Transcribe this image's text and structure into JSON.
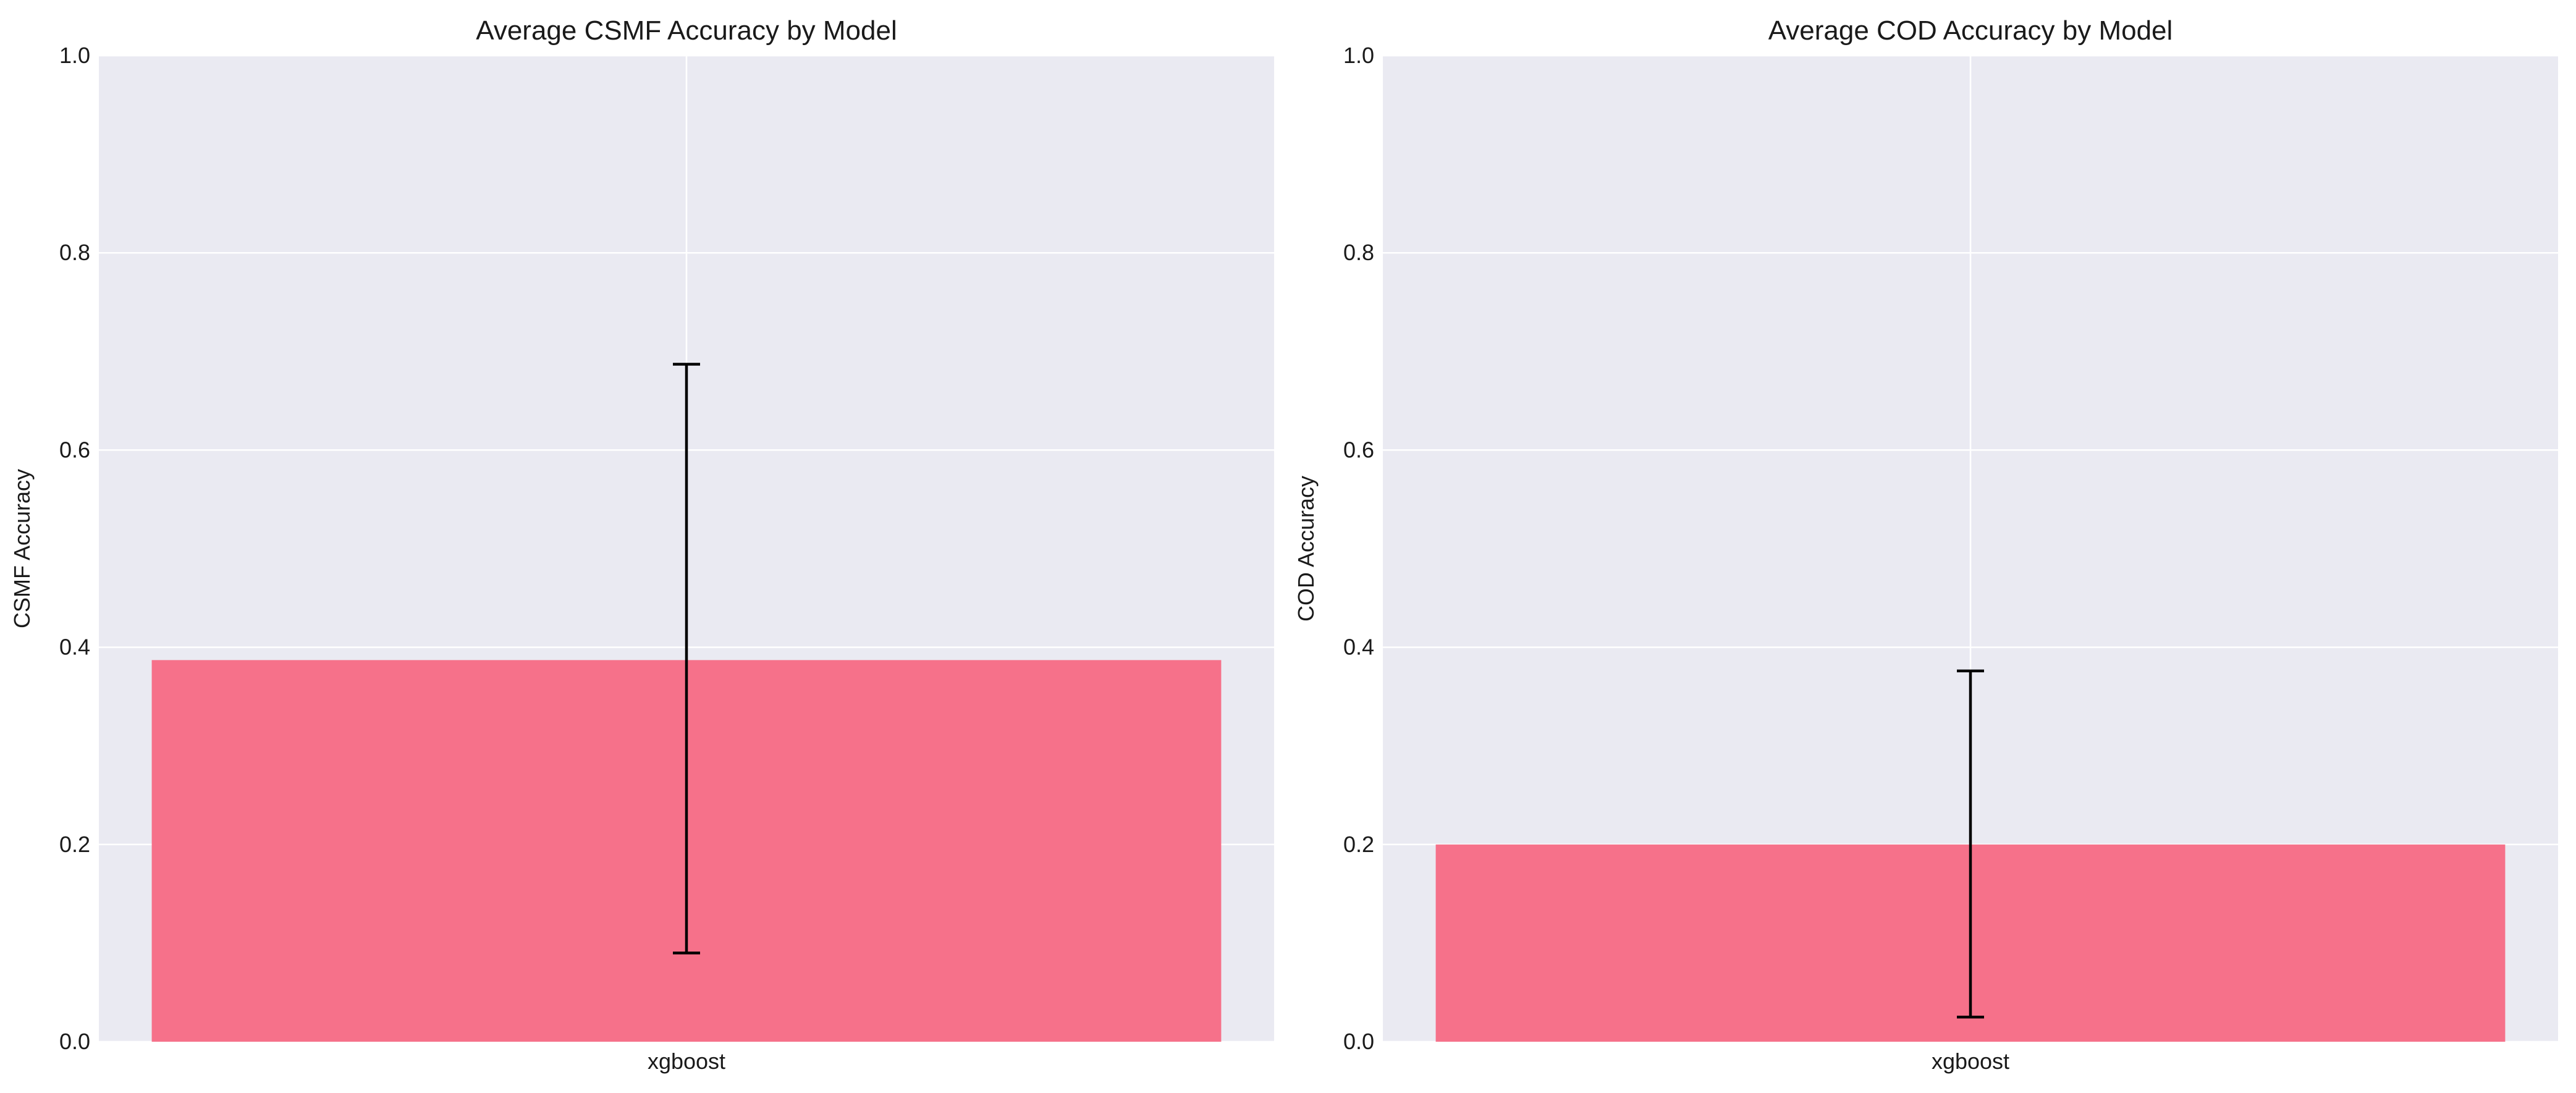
{
  "chart_data": [
    {
      "type": "bar",
      "title": "Average CSMF Accuracy by Model",
      "xlabel": "",
      "ylabel": "CSMF Accuracy",
      "categories": [
        "xgboost"
      ],
      "values": [
        0.387
      ],
      "error": [
        {
          "lower": 0.09,
          "upper": 0.687
        }
      ],
      "ylim": [
        0,
        1.0
      ],
      "yticks": [
        "0.0",
        "0.2",
        "0.4",
        "0.6",
        "0.8",
        "1.0"
      ],
      "grid": true,
      "bar_color": "#f6718a",
      "background": "#eaeaf2"
    },
    {
      "type": "bar",
      "title": "Average COD Accuracy by Model",
      "xlabel": "",
      "ylabel": "COD Accuracy",
      "categories": [
        "xgboost"
      ],
      "values": [
        0.2
      ],
      "error": [
        {
          "lower": 0.025,
          "upper": 0.376
        }
      ],
      "ylim": [
        0,
        1.0
      ],
      "yticks": [
        "0.0",
        "0.2",
        "0.4",
        "0.6",
        "0.8",
        "1.0"
      ],
      "grid": true,
      "bar_color": "#f6718a",
      "background": "#eaeaf2"
    }
  ]
}
